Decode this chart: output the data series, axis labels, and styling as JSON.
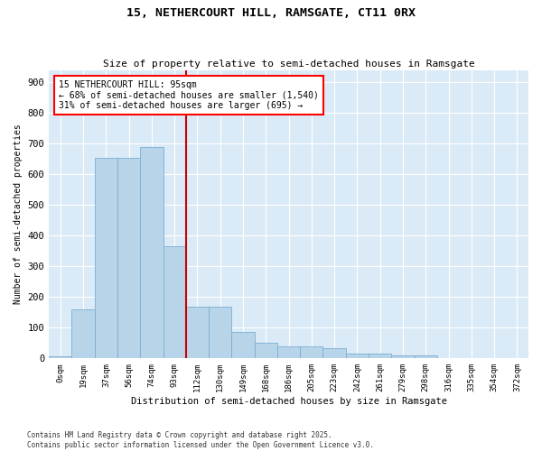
{
  "title": "15, NETHERCOURT HILL, RAMSGATE, CT11 0RX",
  "subtitle": "Size of property relative to semi-detached houses in Ramsgate",
  "xlabel": "Distribution of semi-detached houses by size in Ramsgate",
  "ylabel": "Number of semi-detached properties",
  "bar_color": "#b8d4e8",
  "bar_edge_color": "#7aafd4",
  "plot_bg_color": "#daeaf6",
  "fig_bg_color": "#ffffff",
  "line_color": "#cc0000",
  "annotation_title": "15 NETHERCOURT HILL: 95sqm",
  "annotation_line1": "← 68% of semi-detached houses are smaller (1,540)",
  "annotation_line2": "31% of semi-detached houses are larger (695) →",
  "categories": [
    "0sqm",
    "19sqm",
    "37sqm",
    "56sqm",
    "74sqm",
    "93sqm",
    "112sqm",
    "130sqm",
    "149sqm",
    "168sqm",
    "186sqm",
    "205sqm",
    "223sqm",
    "242sqm",
    "261sqm",
    "279sqm",
    "298sqm",
    "316sqm",
    "335sqm",
    "354sqm",
    "372sqm"
  ],
  "values": [
    8,
    160,
    655,
    655,
    690,
    365,
    170,
    170,
    85,
    50,
    40,
    38,
    33,
    15,
    15,
    10,
    10,
    0,
    0,
    0,
    0
  ],
  "ylim": [
    0,
    940
  ],
  "yticks": [
    0,
    100,
    200,
    300,
    400,
    500,
    600,
    700,
    800,
    900
  ],
  "footer": "Contains HM Land Registry data © Crown copyright and database right 2025.\nContains public sector information licensed under the Open Government Licence v3.0.",
  "property_bar_index": 5,
  "figsize": [
    6.0,
    5.0
  ],
  "dpi": 100
}
